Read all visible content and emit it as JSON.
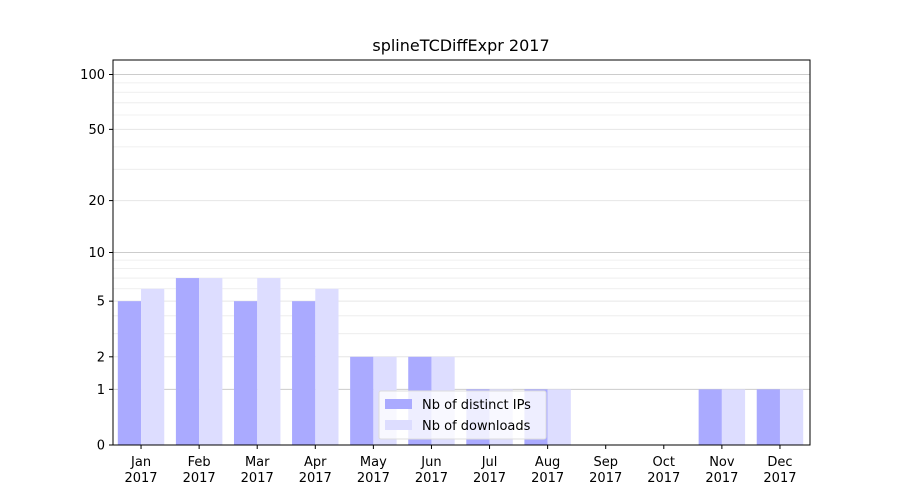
{
  "chart_data": {
    "type": "bar",
    "title": "splineTCDiffExpr 2017",
    "xlabel": "",
    "ylabel": "",
    "categories": [
      "Jan\n2017",
      "Feb\n2017",
      "Mar\n2017",
      "Apr\n2017",
      "May\n2017",
      "Jun\n2017",
      "Jul\n2017",
      "Aug\n2017",
      "Sep\n2017",
      "Oct\n2017",
      "Nov\n2017",
      "Dec\n2017"
    ],
    "series": [
      {
        "name": "Nb of distinct IPs",
        "color": "#aaaaff",
        "values": [
          5,
          7,
          5,
          5,
          2,
          2,
          1,
          1,
          0,
          0,
          1,
          1
        ]
      },
      {
        "name": "Nb of downloads",
        "color": "#ddddff",
        "values": [
          6,
          7,
          7,
          6,
          2,
          2,
          1,
          1,
          0,
          0,
          1,
          1
        ]
      }
    ],
    "yscale": "log(1+y)",
    "ylim": [
      0,
      120
    ],
    "yticks": [
      0,
      1,
      2,
      5,
      10,
      20,
      50,
      100
    ],
    "grid": true,
    "legend_position": "bottom-center"
  }
}
